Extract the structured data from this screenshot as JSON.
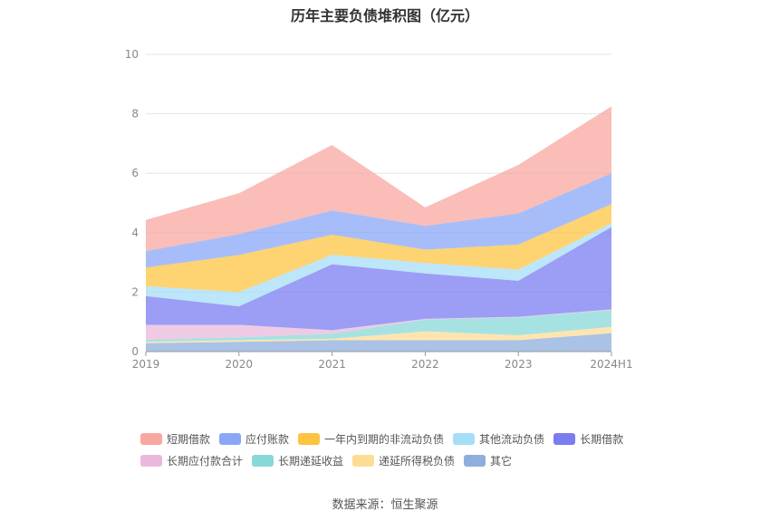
{
  "chart_data": {
    "type": "area",
    "stacked": true,
    "title": "历年主要负债堆积图（亿元）",
    "categories": [
      "2019",
      "2020",
      "2021",
      "2022",
      "2023",
      "2024H1"
    ],
    "ylim": [
      0,
      10
    ],
    "yticks": [
      0,
      2,
      4,
      6,
      8,
      10
    ],
    "series": [
      {
        "name": "其它",
        "color": "#8eaedd",
        "values": [
          0.28,
          0.33,
          0.38,
          0.38,
          0.38,
          0.62
        ]
      },
      {
        "name": "递延所得税负债",
        "color": "#fddc94",
        "values": [
          0.05,
          0.05,
          0.05,
          0.3,
          0.17,
          0.21
        ]
      },
      {
        "name": "长期递延收益",
        "color": "#89d8d9",
        "values": [
          0.07,
          0.1,
          0.17,
          0.4,
          0.6,
          0.57
        ]
      },
      {
        "name": "长期应付款合计",
        "color": "#eab8dc",
        "values": [
          0.5,
          0.42,
          0.12,
          0.02,
          0.02,
          0.02
        ]
      },
      {
        "name": "长期借款",
        "color": "#7b7cf0",
        "values": [
          0.97,
          0.62,
          2.22,
          1.53,
          1.21,
          2.77
        ]
      },
      {
        "name": "其他流动负债",
        "color": "#a5def7",
        "values": [
          0.33,
          0.48,
          0.32,
          0.35,
          0.38,
          0.13
        ]
      },
      {
        "name": "一年内到期的非流动负债",
        "color": "#fdc441",
        "values": [
          0.63,
          1.25,
          0.67,
          0.45,
          0.84,
          0.64
        ]
      },
      {
        "name": "应付账款",
        "color": "#8aa7f7",
        "values": [
          0.55,
          0.7,
          0.82,
          0.8,
          1.05,
          1.04
        ]
      },
      {
        "name": "短期借款",
        "color": "#f8a7a0",
        "values": [
          1.05,
          1.38,
          2.2,
          0.62,
          1.63,
          2.25
        ]
      }
    ],
    "legend_position": "bottom",
    "grid": true
  },
  "legend_rows": [
    [
      {
        "label": "短期借款",
        "color": "#f8a7a0"
      },
      {
        "label": "应付账款",
        "color": "#8aa7f7"
      },
      {
        "label": "一年内到期的非流动负债",
        "color": "#fdc441"
      },
      {
        "label": "其他流动负债",
        "color": "#a5def7"
      },
      {
        "label": "长期借款",
        "color": "#7b7cf0"
      }
    ],
    [
      {
        "label": "长期应付款合计",
        "color": "#eab8dc"
      },
      {
        "label": "长期递延收益",
        "color": "#89d8d9"
      },
      {
        "label": "递延所得税负债",
        "color": "#fddc94"
      },
      {
        "label": "其它",
        "color": "#8eaedd"
      }
    ]
  ],
  "source": "数据来源：恒生聚源"
}
